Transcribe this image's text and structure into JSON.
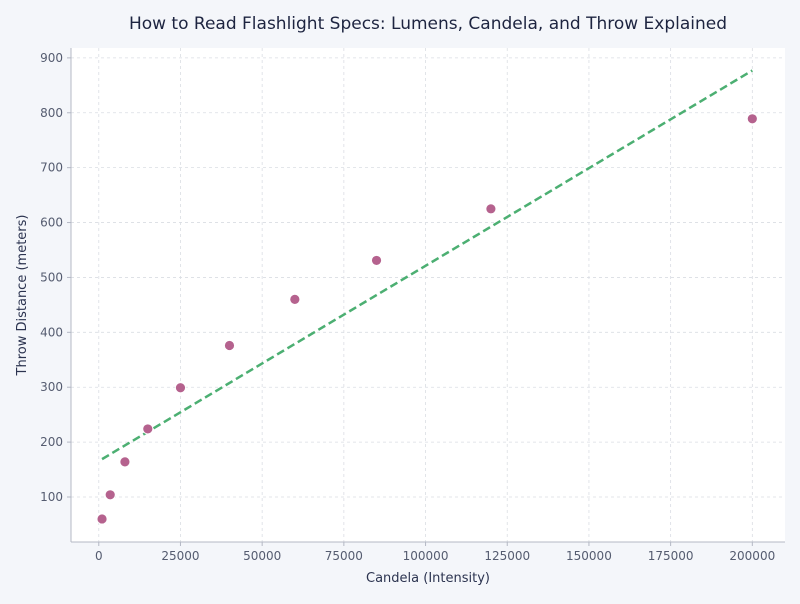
{
  "chart_data": {
    "type": "scatter",
    "title": "How to Read Flashlight Specs: Lumens, Candela, and Throw Explained",
    "xlabel": "Candela (Intensity)",
    "ylabel": "Throw Distance (meters)",
    "xlim": [
      -8500,
      210000
    ],
    "ylim": [
      18,
      918
    ],
    "x_ticks": [
      0,
      25000,
      50000,
      75000,
      100000,
      125000,
      150000,
      175000,
      200000
    ],
    "y_ticks": [
      100,
      200,
      300,
      400,
      500,
      600,
      700,
      800,
      900
    ],
    "grid": true,
    "series": [
      {
        "type": "scatter",
        "color": "#b5628e",
        "points": [
          {
            "x": 1000,
            "y": 60
          },
          {
            "x": 3500,
            "y": 104
          },
          {
            "x": 8000,
            "y": 164
          },
          {
            "x": 15000,
            "y": 224
          },
          {
            "x": 25000,
            "y": 299
          },
          {
            "x": 40000,
            "y": 376
          },
          {
            "x": 60000,
            "y": 460
          },
          {
            "x": 85000,
            "y": 531
          },
          {
            "x": 120000,
            "y": 625
          },
          {
            "x": 200000,
            "y": 789
          }
        ]
      },
      {
        "type": "line",
        "style": "dashed",
        "color": "#4caf72",
        "points": [
          {
            "x": 1000,
            "y": 169
          },
          {
            "x": 200000,
            "y": 877
          }
        ]
      }
    ],
    "colors": {
      "background": "#f4f6fa",
      "plot_background": "#ffffff",
      "axis": "#b4b8c4",
      "grid": "#dadde3",
      "tick_text": "#555c70",
      "title_text": "#1d2440"
    }
  }
}
